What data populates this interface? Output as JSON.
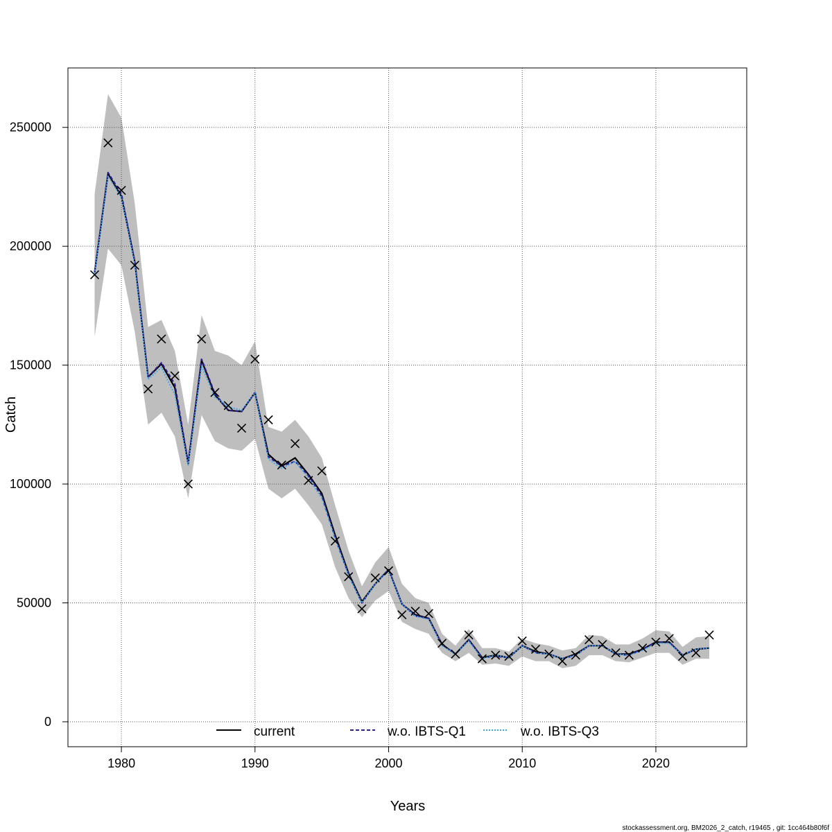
{
  "chart_data": {
    "type": "line",
    "xlabel": "Years",
    "ylabel": "Catch",
    "xlim": [
      1976,
      2026.8
    ],
    "ylim": [
      -10500,
      275000
    ],
    "x_ticks": [
      1980,
      1990,
      2000,
      2010,
      2020
    ],
    "y_ticks": [
      0,
      50000,
      100000,
      150000,
      200000,
      250000
    ],
    "x_tick_labels": [
      "1980",
      "1990",
      "2000",
      "2010",
      "2020"
    ],
    "y_tick_labels": [
      "0",
      "50000",
      "100000",
      "150000",
      "200000",
      "250000"
    ],
    "grid": true,
    "legend_position": "bottom",
    "legend": [
      {
        "label": "current",
        "color": "#000000",
        "style": "solid"
      },
      {
        "label": "w.o. IBTS-Q1",
        "color": "#2b1d8c",
        "style": "dashed"
      },
      {
        "label": "w.o. IBTS-Q3",
        "color": "#3aa6e8",
        "style": "dotted"
      }
    ],
    "confidence_band_color": "#bebebe",
    "years": [
      1978,
      1979,
      1980,
      1981,
      1982,
      1983,
      1984,
      1985,
      1986,
      1987,
      1988,
      1989,
      1990,
      1991,
      1992,
      1993,
      1994,
      1995,
      1996,
      1997,
      1998,
      1999,
      2000,
      2001,
      2002,
      2003,
      2004,
      2005,
      2006,
      2007,
      2008,
      2009,
      2010,
      2011,
      2012,
      2013,
      2014,
      2015,
      2016,
      2017,
      2018,
      2019,
      2020,
      2021,
      2022,
      2023,
      2024
    ],
    "observed": [
      188000,
      243500,
      223500,
      192000,
      140000,
      161000,
      145500,
      100000,
      161000,
      138500,
      133000,
      123500,
      152500,
      127000,
      108000,
      117000,
      101500,
      105500,
      76000,
      61000,
      47500,
      60500,
      63500,
      45000,
      46500,
      45500,
      33000,
      28500,
      36500,
      26500,
      28000,
      27500,
      34000,
      30500,
      28500,
      25500,
      28000,
      34500,
      32500,
      29000,
      28000,
      31000,
      33500,
      35000,
      27500,
      29000,
      36500
    ],
    "upper": [
      222000,
      264000,
      254000,
      218000,
      166000,
      169000,
      156000,
      125000,
      171000,
      156000,
      154000,
      150000,
      160000,
      124000,
      122000,
      127000,
      120000,
      111000,
      91000,
      72000,
      57000,
      67000,
      73500,
      58000,
      52000,
      50000,
      37000,
      32000,
      39000,
      31000,
      31000,
      29500,
      35000,
      33000,
      32000,
      30000,
      31000,
      36500,
      36000,
      32500,
      32500,
      35000,
      38500,
      38000,
      31500,
      35500,
      36000
    ],
    "lower": [
      162000,
      199000,
      192000,
      164000,
      125000,
      130000,
      120000,
      94000,
      129000,
      118000,
      115000,
      114000,
      119000,
      98000,
      94000,
      98000,
      91000,
      83000,
      65000,
      52000,
      44000,
      51000,
      55000,
      42000,
      39000,
      37000,
      29000,
      25500,
      29000,
      24000,
      24500,
      23500,
      27500,
      25500,
      25500,
      22500,
      23500,
      28000,
      28000,
      25500,
      25000,
      27000,
      29000,
      29000,
      24000,
      26500,
      26500
    ],
    "series": [
      {
        "name": "current",
        "values": [
          189000,
          230500,
          221000,
          193500,
          145000,
          150500,
          140500,
          108500,
          152000,
          137500,
          131000,
          130500,
          138500,
          112500,
          107500,
          111000,
          104000,
          96000,
          78500,
          62500,
          50500,
          58000,
          64000,
          49500,
          45000,
          43500,
          32500,
          28500,
          34500,
          27000,
          28000,
          27000,
          32000,
          29500,
          28500,
          26500,
          28500,
          32000,
          32000,
          28500,
          28500,
          30500,
          33500,
          33500,
          28000,
          30500,
          31000
        ]
      },
      {
        "name": "w.o. IBTS-Q1",
        "values": [
          189000,
          231000,
          222000,
          193500,
          145000,
          151000,
          142000,
          109000,
          152500,
          138000,
          131000,
          130500,
          138500,
          111500,
          107500,
          109500,
          103500,
          95000,
          77500,
          62000,
          50000,
          58000,
          64000,
          49500,
          44500,
          43500,
          32500,
          28500,
          34500,
          27000,
          27500,
          27000,
          32000,
          29000,
          28500,
          26500,
          28000,
          32000,
          32000,
          28500,
          28000,
          30500,
          33500,
          33500,
          28000,
          30500,
          31000
        ]
      },
      {
        "name": "w.o. IBTS-Q3",
        "values": [
          188500,
          229500,
          220500,
          192500,
          144000,
          149000,
          137500,
          108000,
          149500,
          136500,
          132500,
          131000,
          138500,
          110500,
          106500,
          109500,
          102500,
          94000,
          77000,
          61500,
          50000,
          58000,
          63500,
          49500,
          44500,
          43000,
          32000,
          28500,
          34000,
          26500,
          28000,
          27000,
          32000,
          29000,
          28500,
          26500,
          28000,
          32000,
          32000,
          28500,
          28000,
          30000,
          33000,
          33000,
          28000,
          30500,
          31000
        ]
      }
    ]
  },
  "footer": {
    "text": "stockassessment.org, BM2026_2_catch, r19465 , git: 1cc464b80f6f"
  }
}
